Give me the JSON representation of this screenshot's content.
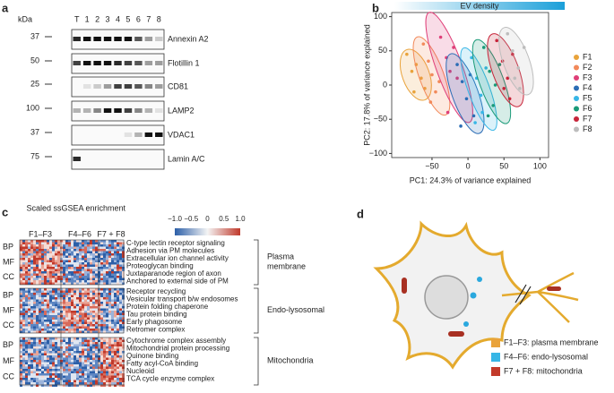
{
  "panels": [
    "a",
    "b",
    "c",
    "d"
  ],
  "blot": {
    "kda_label": "kDa",
    "lanes": [
      "T",
      "1",
      "2",
      "3",
      "4",
      "5",
      "6",
      "7",
      "8"
    ],
    "rows": [
      {
        "marker": "37",
        "name": "Annexin A2"
      },
      {
        "marker": "50",
        "name": "Flotillin 1"
      },
      {
        "marker": "25",
        "name": "CD81"
      },
      {
        "marker": "100",
        "name": "LAMP2"
      },
      {
        "marker": "37",
        "name": "VDAC1"
      },
      {
        "marker": "75",
        "name": "Lamin A/C"
      }
    ]
  },
  "chart_data": {
    "type": "scatter",
    "title": "EV density",
    "xlabel": "PC1: 24.3% of variance explained",
    "ylabel": "PC2: 17.8% of variance explained",
    "xlim": [
      -106,
      112
    ],
    "ylim": [
      -106,
      106
    ],
    "xticks": [
      {
        "value": -50,
        "label": "−50"
      },
      0,
      50,
      100
    ],
    "yticks": [
      {
        "value": -100,
        "label": "−100"
      },
      {
        "value": -50,
        "label": "−50"
      },
      0,
      50,
      100
    ],
    "series": [
      {
        "name": "F1",
        "color": "#e9a33b",
        "x": [
          -85,
          -78,
          -72,
          -65,
          -60,
          -75
        ],
        "values": [
          45,
          20,
          30,
          10,
          -5,
          -10
        ]
      },
      {
        "name": "F2",
        "color": "#f2895a",
        "x": [
          -62,
          -55,
          -50,
          -45,
          -40,
          -52
        ],
        "values": [
          60,
          35,
          15,
          -10,
          5,
          -25
        ]
      },
      {
        "name": "F3",
        "color": "#df3f78",
        "x": [
          -38,
          -30,
          -25,
          -20,
          -15,
          -28
        ],
        "values": [
          70,
          40,
          20,
          55,
          10,
          -40
        ]
      },
      {
        "name": "F4",
        "color": "#2b6db5",
        "x": [
          -15,
          -8,
          -2,
          3,
          8,
          -10
        ],
        "values": [
          30,
          5,
          -20,
          15,
          -45,
          -60
        ]
      },
      {
        "name": "F5",
        "color": "#37b6e6",
        "x": [
          5,
          12,
          18,
          25,
          20,
          10
        ],
        "values": [
          40,
          10,
          -15,
          25,
          -40,
          -55
        ]
      },
      {
        "name": "F6",
        "color": "#1a9a78",
        "x": [
          22,
          30,
          38,
          44,
          35,
          28
        ],
        "values": [
          55,
          20,
          0,
          30,
          -30,
          -45
        ]
      },
      {
        "name": "F7",
        "color": "#c7253a",
        "x": [
          40,
          48,
          55,
          62,
          58,
          50
        ],
        "values": [
          65,
          35,
          10,
          45,
          -20,
          -5
        ]
      },
      {
        "name": "F8",
        "color": "#bdbdbd",
        "x": [
          55,
          62,
          70,
          78,
          72,
          65
        ],
        "values": [
          75,
          50,
          25,
          55,
          -5,
          10
        ]
      }
    ]
  },
  "heatmap": {
    "legend_title": "Scaled ssGSEA enrichment",
    "scale_ticks": [
      {
        "value": -1,
        "label": "−1.0"
      },
      {
        "value": -0.5,
        "label": "−0.5"
      },
      0,
      0.5,
      {
        "value": 1,
        "label": "1.0"
      }
    ],
    "column_groups": [
      "F1–F3",
      "F4–F6",
      "F7 + F8"
    ],
    "row_groups": [
      {
        "name": "Plasma\nmembrane",
        "ontologies": [
          "BP",
          "MF",
          "CC"
        ],
        "terms": [
          "C-type lectin receptor signaling",
          "Adhesion via PM molecules",
          "Extracellular ion channel activity",
          "Proteoglycan binding",
          "Juxtaparanode region of axon",
          "Anchored to external side of PM"
        ]
      },
      {
        "name": "Endo-lysosomal",
        "ontologies": [
          "BP",
          "MF",
          "CC"
        ],
        "terms": [
          "Receptor recycling",
          "Vesicular transport b/w endosomes",
          "Protein folding chaperone",
          "Tau protein binding",
          "Early phagosome",
          "Retromer complex"
        ]
      },
      {
        "name": "Mitochondria",
        "ontologies": [
          "BP",
          "MF",
          "CC"
        ],
        "terms": [
          "Cytochrome complex assembly",
          "Mitochondrial protein processing",
          "Quinone binding",
          "Fatty acyl-CoA binding",
          "Nucleoid",
          "TCA cycle enzyme complex"
        ]
      }
    ]
  },
  "diagram": {
    "legend": [
      {
        "label": "F1–F3: plasma membrane",
        "color": "#e9a33b"
      },
      {
        "label": "F4–F6: endo-lysosomal",
        "color": "#37b6e6"
      },
      {
        "label": "F7 + F8: mitochondria",
        "color": "#c23a2a"
      }
    ]
  }
}
